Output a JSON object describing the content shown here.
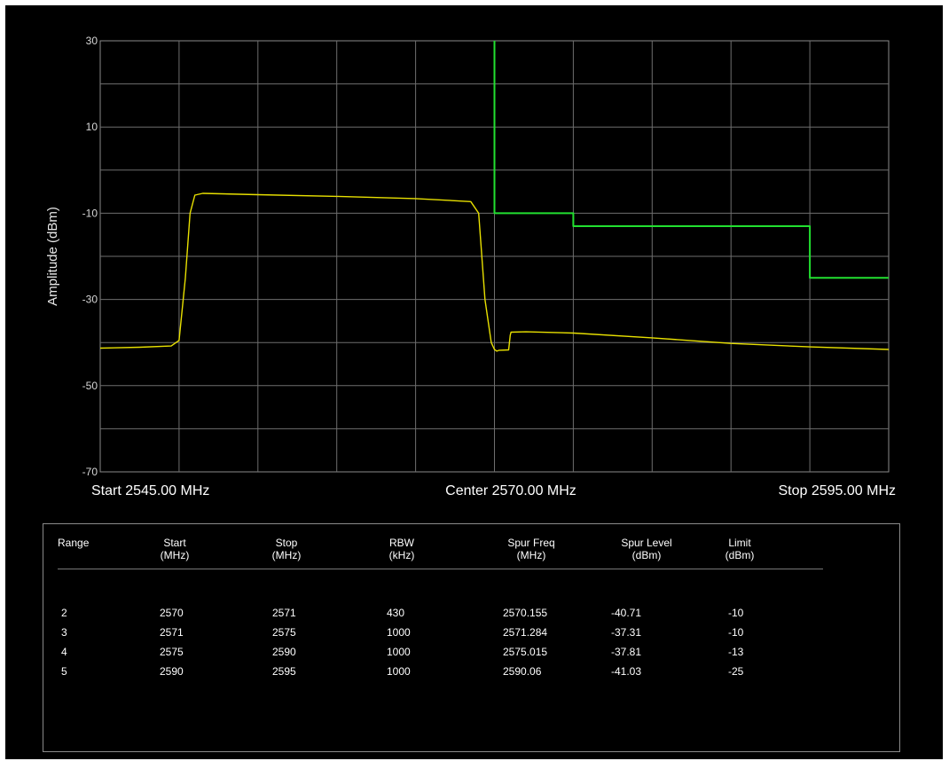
{
  "chart_data": {
    "type": "line",
    "title": "",
    "ylabel": "Amplitude (dBm)",
    "xlabel": "",
    "x_start_label": "Start 2545.00 MHz",
    "x_center_label": "Center 2570.00 MHz",
    "x_stop_label": "Stop 2595.00 MHz",
    "xlim": [
      2545,
      2595
    ],
    "ylim": [
      -70,
      30
    ],
    "y_ticks": [
      30,
      10,
      -10,
      -30,
      -50,
      -70
    ],
    "grid": true,
    "x_grid_divisions": 10,
    "y_grid_divisions": 10,
    "series": [
      {
        "color": "#e8e000",
        "x": [
          2545,
          2547.5,
          2549.5,
          2550,
          2550.4,
          2550.7,
          2551.0,
          2551.5,
          2555,
          2560,
          2565,
          2568.5,
          2569.0,
          2569.4,
          2569.8,
          2570.0,
          2570.15,
          2570.3,
          2570.9,
          2571.0,
          2571.05,
          2572,
          2575,
          2580,
          2585,
          2590,
          2595
        ],
        "values": [
          -41.3,
          -41.1,
          -40.8,
          -39.5,
          -25.0,
          -10.0,
          -5.8,
          -5.4,
          -5.7,
          -6.1,
          -6.6,
          -7.3,
          -10.0,
          -30.0,
          -40.0,
          -41.6,
          -42.0,
          -41.8,
          -41.7,
          -38.3,
          -37.6,
          -37.5,
          -37.8,
          -38.9,
          -40.2,
          -41.0,
          -41.6
        ]
      },
      {
        "color": "#22e030",
        "x": [
          2570,
          2570,
          2575,
          2575,
          2590,
          2590,
          2595
        ],
        "values": [
          30,
          -10,
          -10,
          -13,
          -13,
          -25,
          -25
        ]
      }
    ]
  },
  "table": {
    "headers": [
      {
        "line1": "Range",
        "line2": ""
      },
      {
        "line1": "Start",
        "line2": "(MHz)"
      },
      {
        "line1": "Stop",
        "line2": "(MHz)"
      },
      {
        "line1": "RBW",
        "line2": "(kHz)"
      },
      {
        "line1": "Spur Freq",
        "line2": "(MHz)"
      },
      {
        "line1": "Spur Level",
        "line2": "(dBm)"
      },
      {
        "line1": "Limit",
        "line2": "(dBm)"
      }
    ],
    "rows": [
      [
        "2",
        "2570",
        "2571",
        "430",
        "2570.155",
        "-40.71",
        "-10"
      ],
      [
        "3",
        "2571",
        "2575",
        "1000",
        "2571.284",
        "-37.31",
        "-10"
      ],
      [
        "4",
        "2575",
        "2590",
        "1000",
        "2575.015",
        "-37.81",
        "-13"
      ],
      [
        "5",
        "2590",
        "2595",
        "1000",
        "2590.06",
        "-41.03",
        "-25"
      ]
    ]
  }
}
